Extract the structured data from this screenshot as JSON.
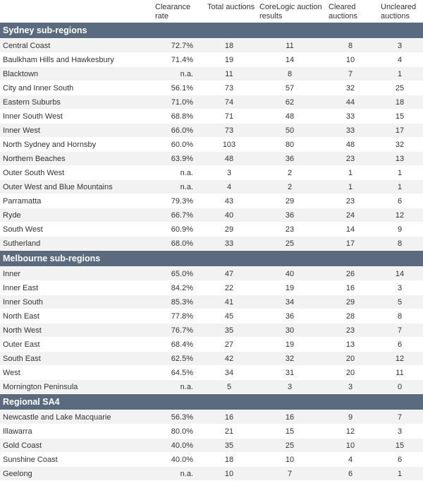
{
  "headers": {
    "region": "",
    "clearance_rate": "Clearance rate",
    "total_auctions": "Total auctions",
    "corelogic_results": "CoreLogic auction results",
    "cleared": "Cleared auctions",
    "uncleared": "Uncleared auctions"
  },
  "sections": [
    {
      "title": "Sydney sub-regions",
      "rows": [
        {
          "region": "Central Coast",
          "rate": "72.7%",
          "total": "18",
          "core": "11",
          "cleared": "8",
          "uncleared": "3"
        },
        {
          "region": "Baulkham Hills and Hawkesbury",
          "rate": "71.4%",
          "total": "19",
          "core": "14",
          "cleared": "10",
          "uncleared": "4"
        },
        {
          "region": "Blacktown",
          "rate": "n.a.",
          "total": "11",
          "core": "8",
          "cleared": "7",
          "uncleared": "1"
        },
        {
          "region": "City and Inner South",
          "rate": "56.1%",
          "total": "73",
          "core": "57",
          "cleared": "32",
          "uncleared": "25"
        },
        {
          "region": "Eastern Suburbs",
          "rate": "71.0%",
          "total": "74",
          "core": "62",
          "cleared": "44",
          "uncleared": "18"
        },
        {
          "region": "Inner South West",
          "rate": "68.8%",
          "total": "71",
          "core": "48",
          "cleared": "33",
          "uncleared": "15"
        },
        {
          "region": "Inner West",
          "rate": "66.0%",
          "total": "73",
          "core": "50",
          "cleared": "33",
          "uncleared": "17"
        },
        {
          "region": "North Sydney and Hornsby",
          "rate": "60.0%",
          "total": "103",
          "core": "80",
          "cleared": "48",
          "uncleared": "32"
        },
        {
          "region": "Northern Beaches",
          "rate": "63.9%",
          "total": "48",
          "core": "36",
          "cleared": "23",
          "uncleared": "13"
        },
        {
          "region": "Outer South West",
          "rate": "n.a.",
          "total": "3",
          "core": "2",
          "cleared": "1",
          "uncleared": "1"
        },
        {
          "region": "Outer West and Blue Mountains",
          "rate": "n.a.",
          "total": "4",
          "core": "2",
          "cleared": "1",
          "uncleared": "1"
        },
        {
          "region": "Parramatta",
          "rate": "79.3%",
          "total": "43",
          "core": "29",
          "cleared": "23",
          "uncleared": "6"
        },
        {
          "region": "Ryde",
          "rate": "66.7%",
          "total": "40",
          "core": "36",
          "cleared": "24",
          "uncleared": "12"
        },
        {
          "region": "South West",
          "rate": "60.9%",
          "total": "29",
          "core": "23",
          "cleared": "14",
          "uncleared": "9"
        },
        {
          "region": "Sutherland",
          "rate": "68.0%",
          "total": "33",
          "core": "25",
          "cleared": "17",
          "uncleared": "8"
        }
      ]
    },
    {
      "title": "Melbourne sub-regions",
      "rows": [
        {
          "region": "Inner",
          "rate": "65.0%",
          "total": "47",
          "core": "40",
          "cleared": "26",
          "uncleared": "14"
        },
        {
          "region": "Inner East",
          "rate": "84.2%",
          "total": "22",
          "core": "19",
          "cleared": "16",
          "uncleared": "3"
        },
        {
          "region": "Inner South",
          "rate": "85.3%",
          "total": "41",
          "core": "34",
          "cleared": "29",
          "uncleared": "5"
        },
        {
          "region": "North East",
          "rate": "77.8%",
          "total": "45",
          "core": "36",
          "cleared": "28",
          "uncleared": "8"
        },
        {
          "region": "North West",
          "rate": "76.7%",
          "total": "35",
          "core": "30",
          "cleared": "23",
          "uncleared": "7"
        },
        {
          "region": "Outer East",
          "rate": "68.4%",
          "total": "27",
          "core": "19",
          "cleared": "13",
          "uncleared": "6"
        },
        {
          "region": "South East",
          "rate": "62.5%",
          "total": "42",
          "core": "32",
          "cleared": "20",
          "uncleared": "12"
        },
        {
          "region": "West",
          "rate": "64.5%",
          "total": "34",
          "core": "31",
          "cleared": "20",
          "uncleared": "11"
        },
        {
          "region": "Mornington Peninsula",
          "rate": "n.a.",
          "total": "5",
          "core": "3",
          "cleared": "3",
          "uncleared": "0"
        }
      ]
    },
    {
      "title": "Regional SA4",
      "rows": [
        {
          "region": "Newcastle and Lake Macquarie",
          "rate": "56.3%",
          "total": "16",
          "core": "16",
          "cleared": "9",
          "uncleared": "7"
        },
        {
          "region": "Illawarra",
          "rate": "80.0%",
          "total": "21",
          "core": "15",
          "cleared": "12",
          "uncleared": "3"
        },
        {
          "region": "Gold Coast",
          "rate": "40.0%",
          "total": "35",
          "core": "25",
          "cleared": "10",
          "uncleared": "15"
        },
        {
          "region": "Sunshine Coast",
          "rate": "40.0%",
          "total": "18",
          "core": "10",
          "cleared": "4",
          "uncleared": "6"
        },
        {
          "region": "Geelong",
          "rate": "n.a.",
          "total": "10",
          "core": "7",
          "cleared": "6",
          "uncleared": "1"
        }
      ]
    }
  ]
}
